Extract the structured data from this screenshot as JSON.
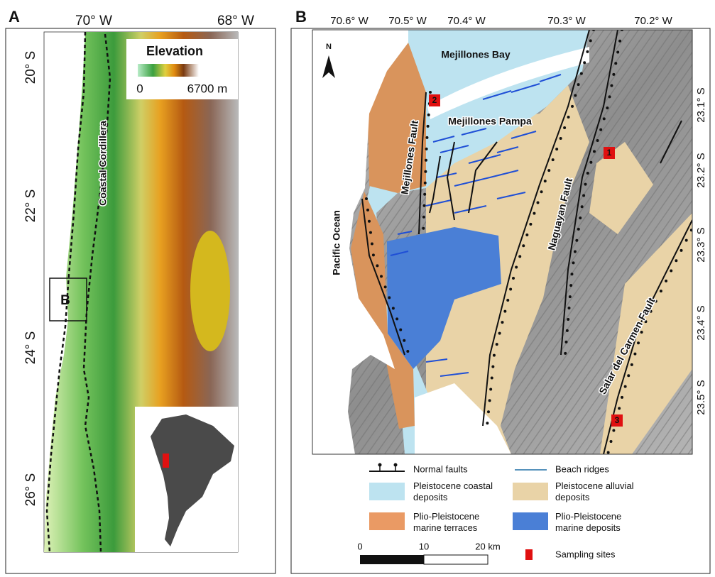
{
  "panel_a": {
    "label": "A",
    "lon_labels": [
      "70° W",
      "68° W"
    ],
    "lat_labels": [
      "20° S",
      "22° S",
      "24° S",
      "26° S"
    ],
    "elevation_legend": {
      "title": "Elevation",
      "min": "0",
      "max": "6700 m"
    },
    "region_label": "Coastal Cordillera",
    "inset_label": "B"
  },
  "panel_b": {
    "label": "B",
    "lon_labels": [
      "70.6° W",
      "70.5° W",
      "70.4° W",
      "70.3° W",
      "70.2° W"
    ],
    "lat_labels": [
      "23.1° S",
      "23.2° S",
      "23.3° S",
      "23.4° S",
      "23.5° S"
    ],
    "north": "N",
    "places": [
      "Mejillones Bay",
      "Mejillones Pampa",
      "Mejillones Fault",
      "Pacific Ocean",
      "Naguayan Fault",
      "Salar del Carmen Fault"
    ],
    "sites": [
      "1",
      "2",
      "3"
    ]
  },
  "legend": {
    "normal_faults": "Normal faults",
    "beach_ridges": "Beach ridges",
    "pleistocene_coastal": [
      "Pleistocene coastal",
      "deposits"
    ],
    "pleistocene_alluvial": [
      "Pleistocene alluvial",
      "deposits"
    ],
    "plio_terraces": [
      "Plio-Pleistocene",
      "marine terraces"
    ],
    "plio_deposits": [
      "Plio-Pleistocene",
      "marine deposits"
    ],
    "scale": [
      "0",
      "10",
      "20 km"
    ],
    "sampling_sites": "Sampling sites"
  }
}
